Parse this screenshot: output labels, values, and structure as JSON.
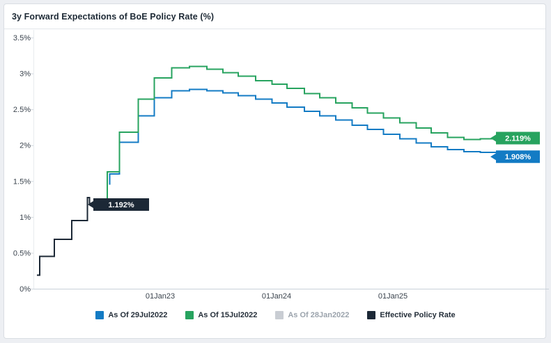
{
  "header": {
    "title": "3y Forward Expectations of BoE Policy Rate (%)"
  },
  "chart_data": {
    "type": "line",
    "subtype": "step-after",
    "title": "3y Forward Expectations of BoE Policy Rate (%)",
    "xlabel": "",
    "ylabel": "",
    "unit": "%",
    "grid": false,
    "legend_position": "bottom",
    "x_axis": {
      "range_years": [
        2021.9,
        2026.25
      ],
      "ticks": [
        {
          "x": 2023,
          "label": "01Jan23"
        },
        {
          "x": 2024,
          "label": "01Jan24"
        },
        {
          "x": 2025,
          "label": "01Jan25"
        }
      ]
    },
    "y_axis": {
      "range": [
        0,
        3.5
      ],
      "ticks": [
        {
          "v": 0,
          "label": "0%"
        },
        {
          "v": 0.5,
          "label": "0.5%"
        },
        {
          "v": 1,
          "label": "1%"
        },
        {
          "v": 1.5,
          "label": "1.5%"
        },
        {
          "v": 2,
          "label": "2%"
        },
        {
          "v": 2.5,
          "label": "2.5%"
        },
        {
          "v": 3,
          "label": "3%"
        },
        {
          "v": 3.5,
          "label": "3.5%"
        }
      ]
    },
    "series": [
      {
        "name": "As Of 29Jul2022",
        "color": "#137bc4",
        "visible": true,
        "end_label": "1.908%",
        "end_value": 1.908,
        "x": [
          2022.565,
          2022.565,
          2022.65,
          2022.81,
          2022.95,
          2023.1,
          2023.25,
          2023.4,
          2023.54,
          2023.67,
          2023.82,
          2023.96,
          2024.09,
          2024.24,
          2024.37,
          2024.51,
          2024.65,
          2024.78,
          2024.92,
          2025.06,
          2025.2,
          2025.33,
          2025.47,
          2025.61,
          2025.75,
          2025.89
        ],
        "y": [
          1.45,
          1.6,
          2.04,
          2.41,
          2.66,
          2.76,
          2.78,
          2.76,
          2.73,
          2.69,
          2.64,
          2.59,
          2.53,
          2.47,
          2.41,
          2.35,
          2.28,
          2.22,
          2.15,
          2.09,
          2.03,
          1.98,
          1.94,
          1.91,
          1.9,
          1.908
        ]
      },
      {
        "name": "As Of 15Jul2022",
        "color": "#27a35f",
        "visible": true,
        "end_label": "2.119%",
        "end_value": 2.119,
        "x": [
          2022.545,
          2022.545,
          2022.65,
          2022.81,
          2022.95,
          2023.1,
          2023.25,
          2023.4,
          2023.54,
          2023.67,
          2023.82,
          2023.96,
          2024.09,
          2024.24,
          2024.37,
          2024.51,
          2024.65,
          2024.78,
          2024.92,
          2025.06,
          2025.2,
          2025.33,
          2025.47,
          2025.61,
          2025.75,
          2025.89
        ],
        "y": [
          1.19,
          1.63,
          2.18,
          2.64,
          2.94,
          3.08,
          3.1,
          3.06,
          3.01,
          2.96,
          2.9,
          2.85,
          2.79,
          2.72,
          2.66,
          2.59,
          2.52,
          2.45,
          2.38,
          2.31,
          2.24,
          2.17,
          2.11,
          2.08,
          2.09,
          2.119
        ]
      },
      {
        "name": "As Of 28Jan2022",
        "color": "#c9cdd3",
        "visible": false,
        "end_label": null,
        "x": [],
        "y": []
      },
      {
        "name": "Effective Policy Rate",
        "color": "#1c2836",
        "visible": true,
        "end_label": "1.192%",
        "end_value": 1.192,
        "x": [
          2021.94,
          2021.965,
          2022.09,
          2022.24,
          2022.375,
          2022.392,
          2022.545
        ],
        "y": [
          0.19,
          0.45,
          0.69,
          0.95,
          1.27,
          1.19,
          1.19
        ]
      }
    ],
    "draw_order": [
      "Effective Policy Rate",
      "As Of 29Jul2022",
      "As Of 15Jul2022"
    ],
    "style": {
      "axis_line": "#c8d1d9",
      "axis_line_faint": "#e7ebef",
      "tick_color": "#3a434d"
    }
  }
}
